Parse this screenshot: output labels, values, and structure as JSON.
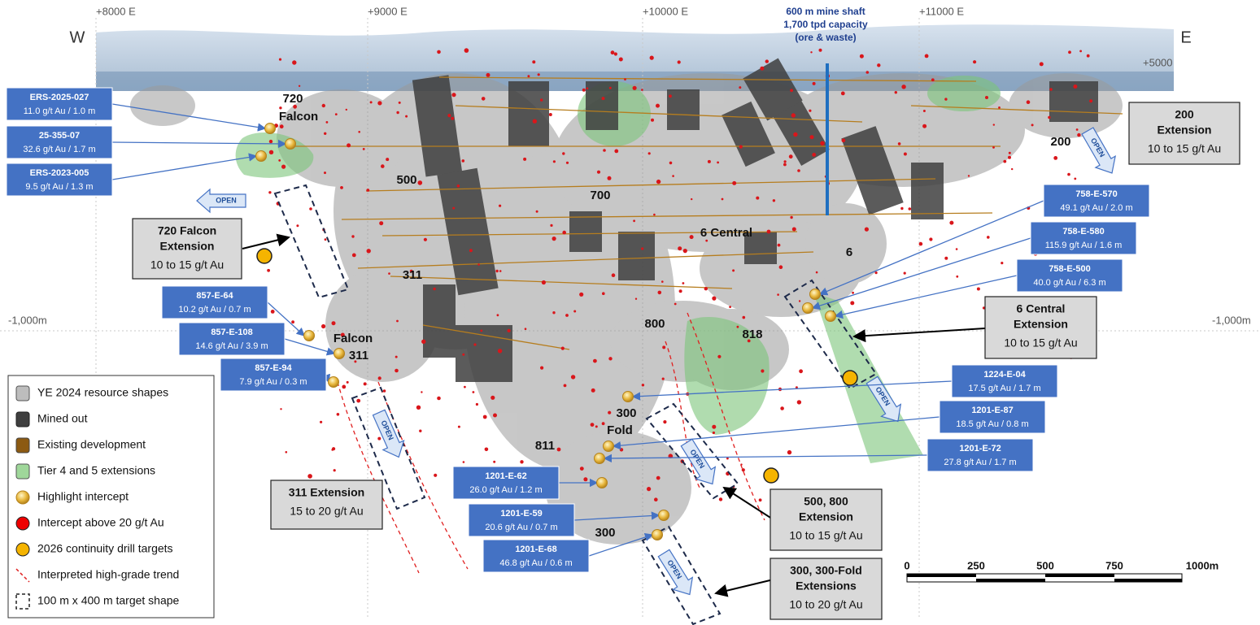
{
  "header": {
    "west": "W",
    "east": "E",
    "eastings": [
      "+8000 E",
      "+9000 E",
      "+10000 E",
      "+11000 E"
    ],
    "elevation_top": "+5000",
    "elevation_mid_left": "-1,000m",
    "elevation_mid_right": "-1,000m",
    "shaft_label": [
      "600 m mine shaft",
      "1,700 tpd capacity",
      "(ore & waste)"
    ]
  },
  "zones": [
    "720",
    "Falcon",
    "500",
    "700",
    "6 Central",
    "6",
    "311",
    "800",
    "818",
    "Falcon",
    "311",
    "300",
    "Fold",
    "811",
    "300",
    "200"
  ],
  "intercepts": [
    {
      "hole": "ERS-2025-027",
      "result": "11.0 g/t Au / 1.0 m"
    },
    {
      "hole": "25-355-07",
      "result": "32.6 g/t Au / 1.7 m"
    },
    {
      "hole": "ERS-2023-005",
      "result": "9.5 g/t Au / 1.3 m"
    },
    {
      "hole": "857-E-64",
      "result": "10.2 g/t Au / 0.7 m"
    },
    {
      "hole": "857-E-108",
      "result": "14.6 g/t Au / 3.9 m"
    },
    {
      "hole": "857-E-94",
      "result": "7.9 g/t Au / 0.3 m"
    },
    {
      "hole": "758-E-570",
      "result": "49.1 g/t Au / 2.0 m"
    },
    {
      "hole": "758-E-580",
      "result": "115.9 g/t Au / 1.6 m"
    },
    {
      "hole": "758-E-500",
      "result": "40.0 g/t Au / 6.3 m"
    },
    {
      "hole": "1224-E-04",
      "result": "17.5 g/t Au / 1.7 m"
    },
    {
      "hole": "1201-E-87",
      "result": "18.5 g/t Au / 0.8 m"
    },
    {
      "hole": "1201-E-72",
      "result": "27.8 g/t Au / 1.7 m"
    },
    {
      "hole": "1201-E-62",
      "result": "26.0 g/t Au / 1.2 m"
    },
    {
      "hole": "1201-E-59",
      "result": "20.6 g/t Au / 0.7 m"
    },
    {
      "hole": "1201-E-68",
      "result": "46.8 g/t Au / 0.6 m"
    }
  ],
  "targets": [
    {
      "title": [
        "200",
        "Extension"
      ],
      "grade": "10 to 15 g/t Au"
    },
    {
      "title": [
        "720 Falcon",
        "Extension"
      ],
      "grade": "10 to 15 g/t Au"
    },
    {
      "title": [
        "6 Central",
        "Extension"
      ],
      "grade": "10 to 15 g/t Au"
    },
    {
      "title": [
        "311 Extension"
      ],
      "grade": "15 to 20 g/t Au"
    },
    {
      "title": [
        "500, 800",
        "Extension"
      ],
      "grade": "10 to 15 g/t Au"
    },
    {
      "title": [
        "300, 300-Fold",
        "Extensions"
      ],
      "grade": "10 to 20 g/t Au"
    }
  ],
  "open_label": "OPEN",
  "legend": [
    "YE 2024 resource shapes",
    "Mined out",
    "Existing development",
    "Tier 4 and 5 extensions",
    "Highlight intercept",
    "Intercept above 20 g/t Au",
    "2026 continuity drill targets",
    "Interpreted high-grade trend",
    "100 m x 400 m target shape"
  ],
  "scale_bar": [
    "0",
    "250",
    "500",
    "750",
    "1000m"
  ]
}
